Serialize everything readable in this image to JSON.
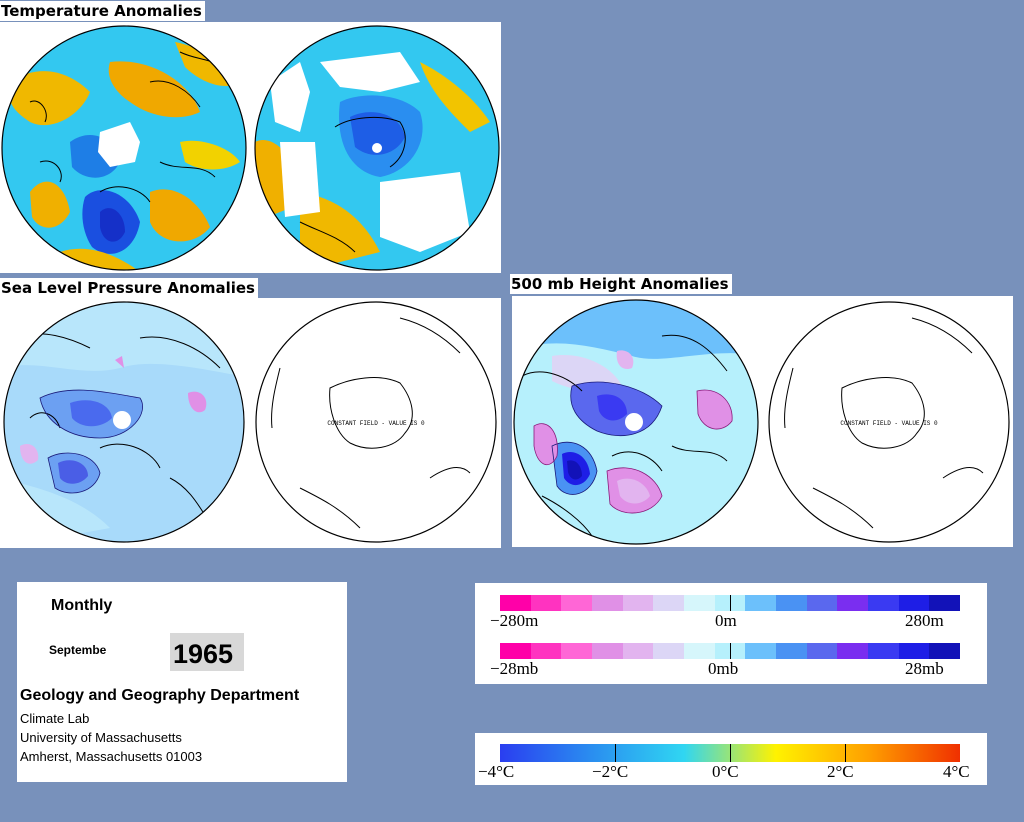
{
  "sections": {
    "temperature": {
      "title": "Temperature Anomalies"
    },
    "slp": {
      "title": "Sea Level Pressure Anomalies",
      "south_map_note": "CONSTANT FIELD - VALUE IS 0"
    },
    "h500": {
      "title": "500 mb Height Anomalies",
      "south_map_note": "CONSTANT FIELD - VALUE IS 0"
    }
  },
  "info": {
    "period_label": "Monthly",
    "month": "Septembe",
    "year": "1965",
    "department": "Geology and Geography Department",
    "lab": "Climate Lab",
    "university": "University of Massachusetts",
    "address": "Amherst, Massachusetts 01003"
  },
  "legends": {
    "height": {
      "labels": [
        "−280m",
        "0m",
        "280m"
      ],
      "colors": [
        "#ff00a8",
        "#ff33c0",
        "#ff66d6",
        "#e090e6",
        "#e2b4ef",
        "#dcd6f6",
        "#d6f6fb",
        "#b6f0fc",
        "#6cc0fb",
        "#4a92f3",
        "#5a68ee",
        "#7a2ef0",
        "#3a3af2",
        "#1e1ee6",
        "#1212b8"
      ]
    },
    "pressure": {
      "labels": [
        "−28mb",
        "0mb",
        "28mb"
      ],
      "colors": [
        "#ff00a8",
        "#ff33c0",
        "#ff66d6",
        "#e090e6",
        "#e2b4ef",
        "#dcd6f6",
        "#d6f6fb",
        "#b6f0fc",
        "#6cc0fb",
        "#4a92f3",
        "#5a68ee",
        "#7a2ef0",
        "#3a3af2",
        "#1e1ee6",
        "#1212b8"
      ]
    },
    "temperature": {
      "labels": [
        "−4°C",
        "−2°C",
        "0°C",
        "2°C",
        "4°C"
      ],
      "gradient": [
        "#2a3ef0",
        "#2a8ef0",
        "#30d6f2",
        "#fff200",
        "#ffa000",
        "#f03000"
      ]
    }
  }
}
